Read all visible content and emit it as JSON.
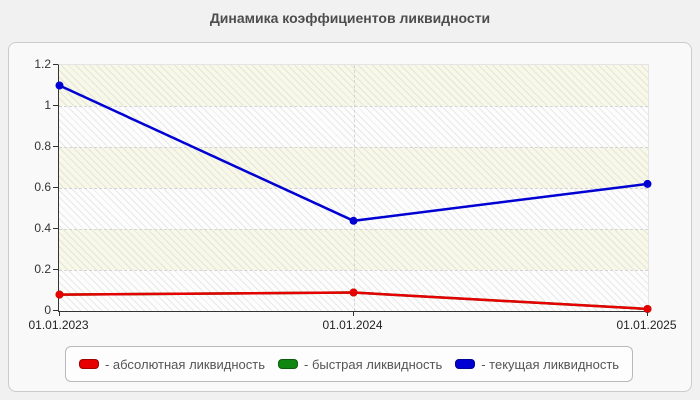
{
  "title": "Динамика коэффициентов ликвидности",
  "chart_data": {
    "type": "line",
    "x": [
      "01.01.2023",
      "01.01.2024",
      "01.01.2025"
    ],
    "series": [
      {
        "name": "абсолютная ликвидность",
        "color": "#e60000",
        "values": [
          0.08,
          0.09,
          0.01
        ]
      },
      {
        "name": "быстрая ликвидность",
        "color": "#0f860f",
        "values": [
          0.08,
          0.09,
          0.01
        ]
      },
      {
        "name": "текущая ликвидность",
        "color": "#0000d2",
        "values": [
          1.1,
          0.44,
          0.62
        ]
      }
    ],
    "draw_order": [
      1,
      0,
      2
    ],
    "ylim": [
      0,
      1.2
    ],
    "yticks": [
      0,
      0.2,
      0.4,
      0.6,
      0.8,
      1,
      1.2
    ],
    "ytick_labels": [
      "0",
      "0.2",
      "0.4",
      "0.6",
      "0.8",
      "1",
      "1.2"
    ],
    "grid": true,
    "legend_position": "bottom"
  },
  "legend": {
    "items": [
      {
        "label": "- абсолютная ликвидность",
        "color": "#e60000"
      },
      {
        "label": "- быстрая ликвидность",
        "color": "#0f860f"
      },
      {
        "label": "- текущая ликвидность",
        "color": "#0000d2"
      }
    ]
  }
}
